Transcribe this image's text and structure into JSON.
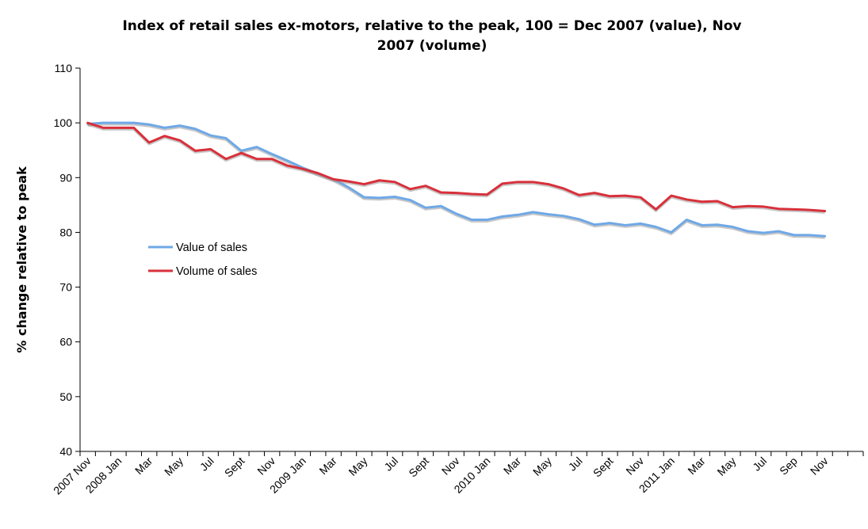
{
  "chart_data": {
    "type": "line",
    "title": "Index of retail sales ex-motors, relative to the peak, 100 = Dec 2007 (value), Nov 2007 (volume)",
    "title_lines": [
      "Index of retail sales ex-motors, relative to the peak, 100 = Dec 2007 (value), Nov",
      "2007 (volume)"
    ],
    "xlabel": "",
    "ylabel": "% change relative to peak",
    "ylim": [
      40,
      110
    ],
    "yticks": [
      40,
      50,
      60,
      70,
      80,
      90,
      100,
      110
    ],
    "x_tick_labels": [
      "2007 Nov",
      "2008 Jan",
      "Mar",
      "May",
      "Jul",
      "Sept",
      "Nov",
      "2009 Jan",
      "Mar",
      "May",
      "Jul",
      "Sept",
      "Nov",
      "2010 Jan",
      "Mar",
      "May",
      "Jul",
      "Sept",
      "Nov",
      "2011 Jan",
      "Mar",
      "May",
      "Jul",
      "Sep",
      "Nov"
    ],
    "x": [
      "2007 Nov",
      "2007 Dec",
      "2008 Jan",
      "2008 Feb",
      "2008 Mar",
      "2008 Apr",
      "2008 May",
      "2008 Jun",
      "2008 Jul",
      "2008 Aug",
      "2008 Sept",
      "2008 Oct",
      "2008 Nov",
      "2008 Dec",
      "2009 Jan",
      "2009 Feb",
      "2009 Mar",
      "2009 Apr",
      "2009 May",
      "2009 Jun",
      "2009 Jul",
      "2009 Aug",
      "2009 Sept",
      "2009 Oct",
      "2009 Nov",
      "2009 Dec",
      "2010 Jan",
      "2010 Feb",
      "2010 Mar",
      "2010 Apr",
      "2010 May",
      "2010 Jun",
      "2010 Jul",
      "2010 Aug",
      "2010 Sept",
      "2010 Oct",
      "2010 Nov",
      "2010 Dec",
      "2011 Jan",
      "2011 Feb",
      "2011 Mar",
      "2011 Apr",
      "2011 May",
      "2011 Jun",
      "2011 Jul",
      "2011 Aug",
      "2011 Sep",
      "2011 Oct",
      "2011 Nov"
    ],
    "n_category_slots": 51,
    "series": [
      {
        "name": "Value of sales",
        "color": "#6fa8e6",
        "values": [
          99.8,
          100.0,
          100.0,
          100.0,
          99.7,
          99.1,
          99.5,
          98.9,
          97.7,
          97.2,
          94.9,
          95.6,
          94.3,
          93.1,
          91.8,
          90.7,
          89.7,
          88.2,
          86.4,
          86.3,
          86.5,
          85.9,
          84.5,
          84.8,
          83.4,
          82.3,
          82.3,
          82.9,
          83.2,
          83.7,
          83.3,
          83.0,
          82.4,
          81.4,
          81.7,
          81.3,
          81.6,
          81.0,
          80.0,
          82.3,
          81.3,
          81.4,
          81.0,
          80.2,
          79.9,
          80.2,
          79.5,
          79.5,
          79.3
        ]
      },
      {
        "name": "Volume of sales",
        "color": "#d8303a",
        "values": [
          100.0,
          99.1,
          99.1,
          99.1,
          96.4,
          97.6,
          96.8,
          94.9,
          95.2,
          93.4,
          94.5,
          93.4,
          93.4,
          92.2,
          91.6,
          90.8,
          89.7,
          89.3,
          88.8,
          89.5,
          89.2,
          87.9,
          88.5,
          87.3,
          87.2,
          87.0,
          86.9,
          88.9,
          89.2,
          89.2,
          88.8,
          88.0,
          86.8,
          87.2,
          86.6,
          86.7,
          86.4,
          84.2,
          86.7,
          86.0,
          85.6,
          85.7,
          84.6,
          84.8,
          84.7,
          84.3,
          84.2,
          84.1,
          83.9
        ]
      }
    ],
    "legend": {
      "position": "left",
      "entries": [
        "Value of sales",
        "Volume of sales"
      ]
    },
    "grid": false
  }
}
